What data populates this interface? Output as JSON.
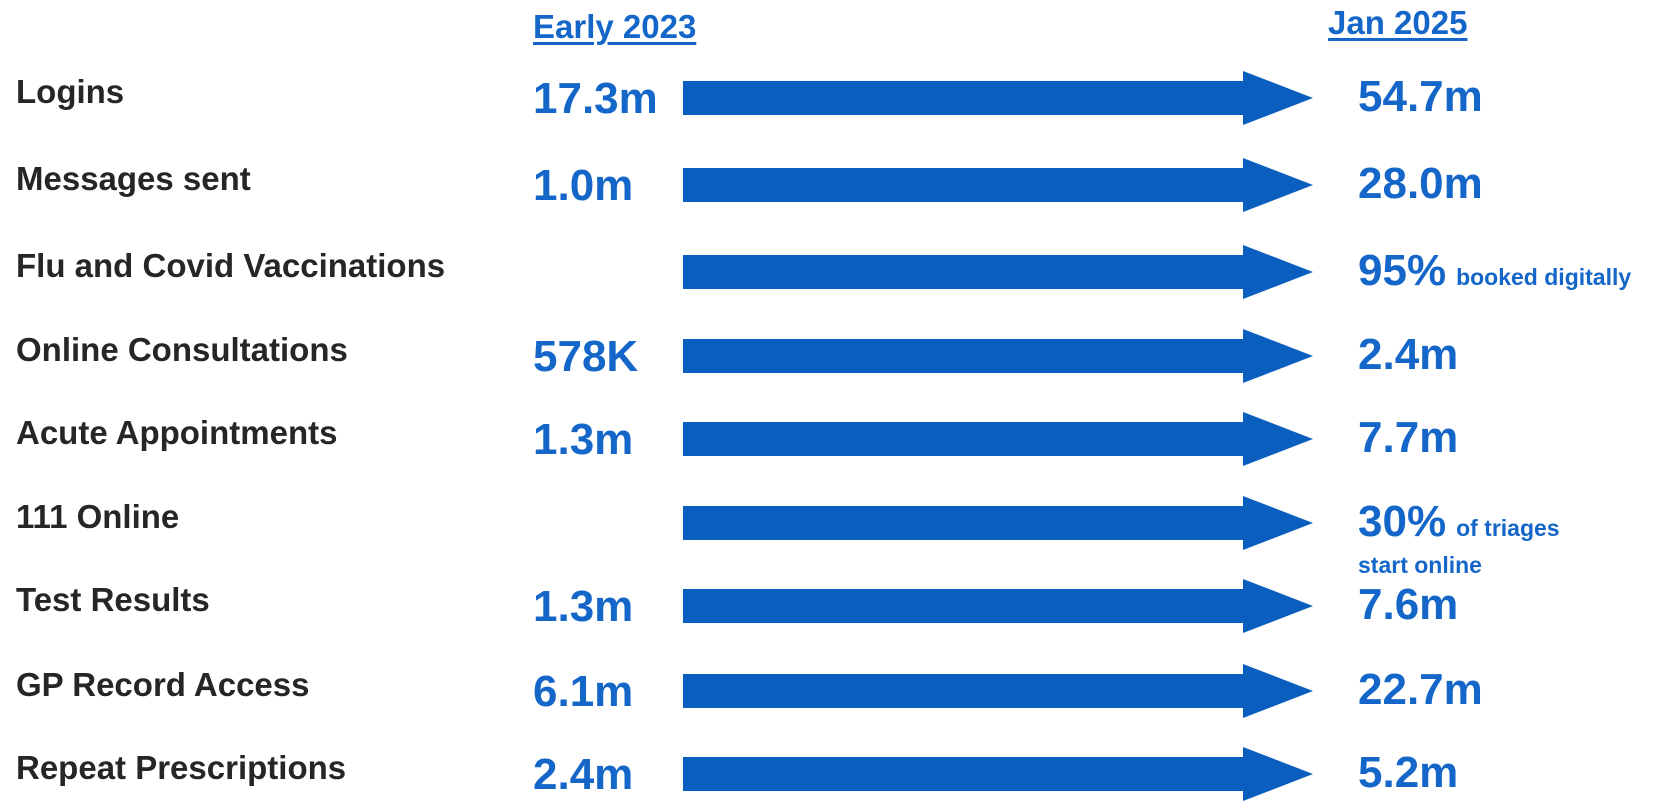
{
  "headers": {
    "start": "Early 2023",
    "end": "Jan 2025"
  },
  "colors": {
    "accent": "#1467c8",
    "arrow": "#0a5ebd",
    "label": "#262626"
  },
  "rows": [
    {
      "label": "Logins",
      "start": "17.3m",
      "end": "54.7m",
      "note": "",
      "note2": ""
    },
    {
      "label": "Messages sent",
      "start": "1.0m",
      "end": "28.0m",
      "note": "",
      "note2": ""
    },
    {
      "label": "Flu and Covid Vaccinations",
      "start": "",
      "end": "95%",
      "note": "booked digitally",
      "note2": ""
    },
    {
      "label": "Online Consultations",
      "start": "578K",
      "end": "2.4m",
      "note": "",
      "note2": ""
    },
    {
      "label": "Acute Appointments",
      "start": "1.3m",
      "end": "7.7m",
      "note": "",
      "note2": ""
    },
    {
      "label": "111 Online",
      "start": "",
      "end": "30%",
      "note": "of triages",
      "note2": "start online"
    },
    {
      "label": "Test Results",
      "start": "1.3m",
      "end": "7.6m",
      "note": "",
      "note2": ""
    },
    {
      "label": "GP Record Access",
      "start": "6.1m",
      "end": "22.7m",
      "note": "",
      "note2": ""
    },
    {
      "label": "Repeat Prescriptions",
      "start": "2.4m",
      "end": "5.2m",
      "note": "",
      "note2": ""
    }
  ]
}
